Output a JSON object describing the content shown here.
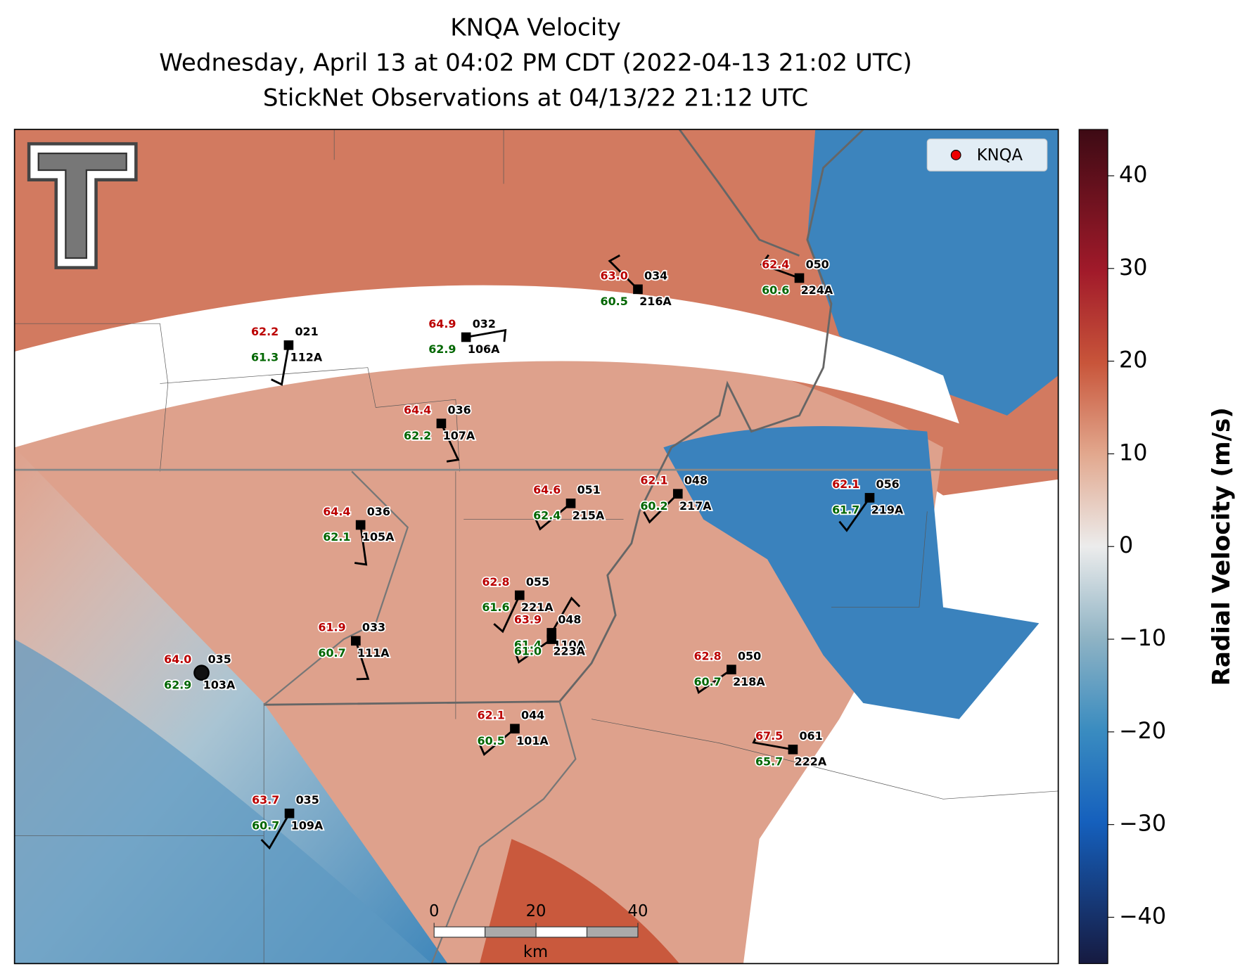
{
  "title": [
    "KNQA Velocity",
    "Wednesday, April 13 at 04:02 PM CDT (2022-04-13 21:02 UTC)",
    "StickNet Observations at 04/13/22 21:12 UTC"
  ],
  "legend": "KNQA",
  "colorbar": {
    "label": "Radial Velocity (m/s)",
    "lim": [
      -45,
      45
    ],
    "ticks": [
      {
        "value": -40,
        "label": "−40"
      },
      {
        "value": -30,
        "label": "−30"
      },
      {
        "value": -20,
        "label": "−20"
      },
      {
        "value": -10,
        "label": "−10"
      },
      0,
      10,
      20,
      30,
      40
    ]
  },
  "scale_bar": {
    "ticks": [
      0,
      20,
      40
    ],
    "unit": "km"
  },
  "stations": [
    {
      "id": "112A",
      "temp": "62.2",
      "dew": "61.3",
      "wind": "021"
    },
    {
      "id": "106A",
      "temp": "64.9",
      "dew": "62.9",
      "wind": "032"
    },
    {
      "id": "216A",
      "temp": "63.0",
      "dew": "60.5",
      "wind": "034"
    },
    {
      "id": "224A",
      "temp": "62.4",
      "dew": "60.6",
      "wind": "050"
    },
    {
      "id": "107A",
      "temp": "64.4",
      "dew": "62.2",
      "wind": "036"
    },
    {
      "id": "215A",
      "temp": "64.6",
      "dew": "62.4",
      "wind": "051"
    },
    {
      "id": "217A",
      "temp": "62.1",
      "dew": "60.2",
      "wind": "048"
    },
    {
      "id": "219A",
      "temp": "62.1",
      "dew": "61.7",
      "wind": "056"
    },
    {
      "id": "105A",
      "temp": "64.4",
      "dew": "62.1",
      "wind": "036"
    },
    {
      "id": "221A",
      "temp": "62.8",
      "dew": "61.6",
      "wind": "055"
    },
    {
      "id": "110A",
      "temp": "63.9",
      "dew": "61.4",
      "wind": "048"
    },
    {
      "id": "223A",
      "dew": "61.0"
    },
    {
      "id": "111A",
      "temp": "61.9",
      "dew": "60.7",
      "wind": "033"
    },
    {
      "id": "103A",
      "temp": "64.0",
      "dew": "62.9",
      "wind": "035"
    },
    {
      "id": "218A",
      "temp": "62.8",
      "dew": "60.7",
      "wind": "050"
    },
    {
      "id": "101A",
      "temp": "62.1",
      "dew": "60.5",
      "wind": "044"
    },
    {
      "id": "222A",
      "temp": "67.5",
      "dew": "65.7",
      "wind": "061"
    },
    {
      "id": "109A",
      "temp": "63.7",
      "dew": "60.7",
      "wind": "035"
    }
  ]
}
